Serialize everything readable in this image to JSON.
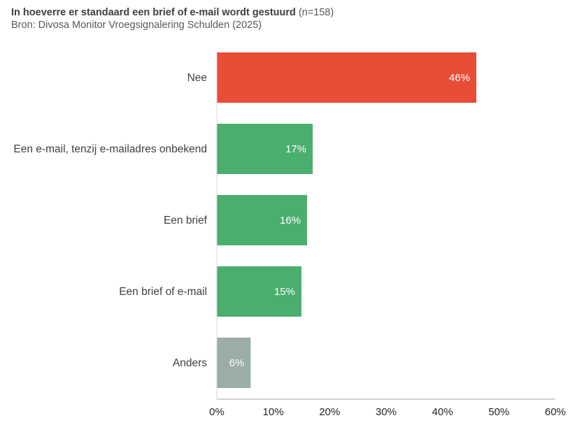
{
  "header": {
    "title": "In hoeverre er standaard een brief of e-mail wordt gestuurd",
    "n_label": "(n=158)",
    "subtitle": "Bron: Divosa Monitor Vroegsignalering Schulden (2025)"
  },
  "chart_data": {
    "type": "bar",
    "orientation": "horizontal",
    "title": "In hoeverre er standaard een brief of e-mail wordt gestuurd",
    "subtitle": "Bron: Divosa Monitor Vroegsignalering Schulden (2025)",
    "categories": [
      "Nee",
      "Een e-mail, tenzij e-mailadres onbekend",
      "Een brief",
      "Een brief of e-mail",
      "Anders"
    ],
    "values": [
      46,
      17,
      16,
      15,
      6
    ],
    "value_labels": [
      "46%",
      "17%",
      "16%",
      "15%",
      "6%"
    ],
    "bar_colors": [
      "#E84E36",
      "#4AAE6E",
      "#4AAE6E",
      "#4AAE6E",
      "#9AADA8"
    ],
    "xlim": [
      0,
      60
    ],
    "xticks": [
      0,
      10,
      20,
      30,
      40,
      50,
      60
    ],
    "xtick_labels": [
      "0%",
      "10%",
      "20%",
      "30%",
      "40%",
      "50%",
      "60%"
    ],
    "grid": false,
    "legend": "none"
  }
}
